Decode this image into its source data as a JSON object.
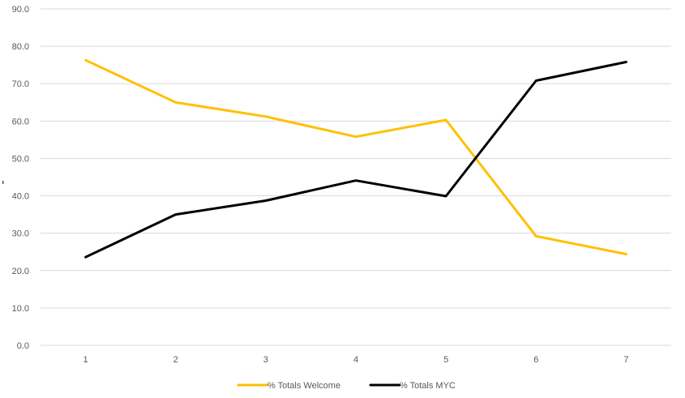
{
  "chart_data": {
    "type": "line",
    "x": [
      1,
      2,
      3,
      4,
      5,
      6,
      7
    ],
    "x_tick_labels": [
      "1",
      "2",
      "3",
      "4",
      "5",
      "6",
      "7"
    ],
    "ylim": [
      0,
      90
    ],
    "y_ticks": [
      0,
      10,
      20,
      30,
      40,
      50,
      60,
      70,
      80,
      90
    ],
    "y_tick_labels": [
      "0.0",
      "10.0",
      "20.0",
      "30.0",
      "40.0",
      "50.0",
      "60.0",
      "70.0",
      "80.0",
      "90.0"
    ],
    "grid": true,
    "legend_position": "bottom",
    "series": [
      {
        "name": "% Totals Welcome",
        "color": "#ffc000",
        "values": [
          76.3,
          65.0,
          61.2,
          55.8,
          60.3,
          29.2,
          24.4
        ]
      },
      {
        "name": "% Totals MYC",
        "color": "#000000",
        "values": [
          23.6,
          35.0,
          38.7,
          44.1,
          39.9,
          70.8,
          75.8
        ]
      }
    ]
  }
}
